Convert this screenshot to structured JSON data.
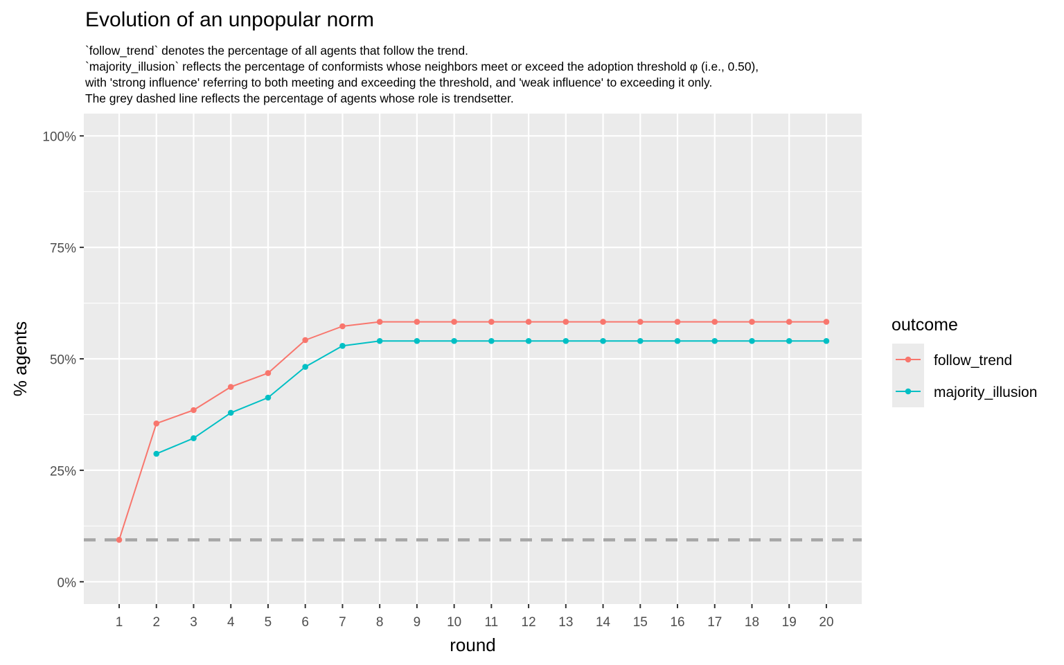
{
  "chart_data": {
    "type": "line",
    "title": "Evolution of an unpopular norm",
    "subtitle_lines": [
      "`follow_trend` denotes the percentage of all agents that follow the trend.",
      "`majority_illusion` reflects the percentage of conformists whose neighbors meet or exceed the adoption threshold φ (i.e., 0.50),",
      "with 'strong influence' referring to both meeting and exceeding the threshold, and 'weak influence' to exceeding it only.",
      "The grey dashed line reflects the percentage of agents whose role is trendsetter."
    ],
    "xlabel": "round",
    "ylabel": "% agents",
    "x": [
      1,
      2,
      3,
      4,
      5,
      6,
      7,
      8,
      9,
      10,
      11,
      12,
      13,
      14,
      15,
      16,
      17,
      18,
      19,
      20
    ],
    "xlim": [
      0.05,
      20.95
    ],
    "ylim": [
      -0.05,
      1.05
    ],
    "y_ticks": [
      0,
      0.25,
      0.5,
      0.75,
      1.0
    ],
    "y_tick_labels": [
      "0%",
      "25%",
      "50%",
      "75%",
      "100%"
    ],
    "grid": true,
    "legend_position": "right",
    "legend_title": "outcome",
    "series": [
      {
        "name": "follow_trend",
        "color": "#F8766D",
        "values": [
          0.094,
          0.355,
          0.385,
          0.437,
          0.468,
          0.542,
          0.573,
          0.583,
          0.583,
          0.583,
          0.583,
          0.583,
          0.583,
          0.583,
          0.583,
          0.583,
          0.583,
          0.583,
          0.583,
          0.583
        ]
      },
      {
        "name": "majority_illusion",
        "color": "#00BFC4",
        "values": [
          null,
          0.287,
          0.322,
          0.379,
          0.413,
          0.482,
          0.529,
          0.54,
          0.54,
          0.54,
          0.54,
          0.54,
          0.54,
          0.54,
          0.54,
          0.54,
          0.54,
          0.54,
          0.54,
          0.54
        ]
      }
    ],
    "reference_line": {
      "y": 0.094,
      "color": "#A6A6A6",
      "style": "dashed"
    },
    "panel_background": "#EBEBEB",
    "grid_color": "#FFFFFF"
  }
}
